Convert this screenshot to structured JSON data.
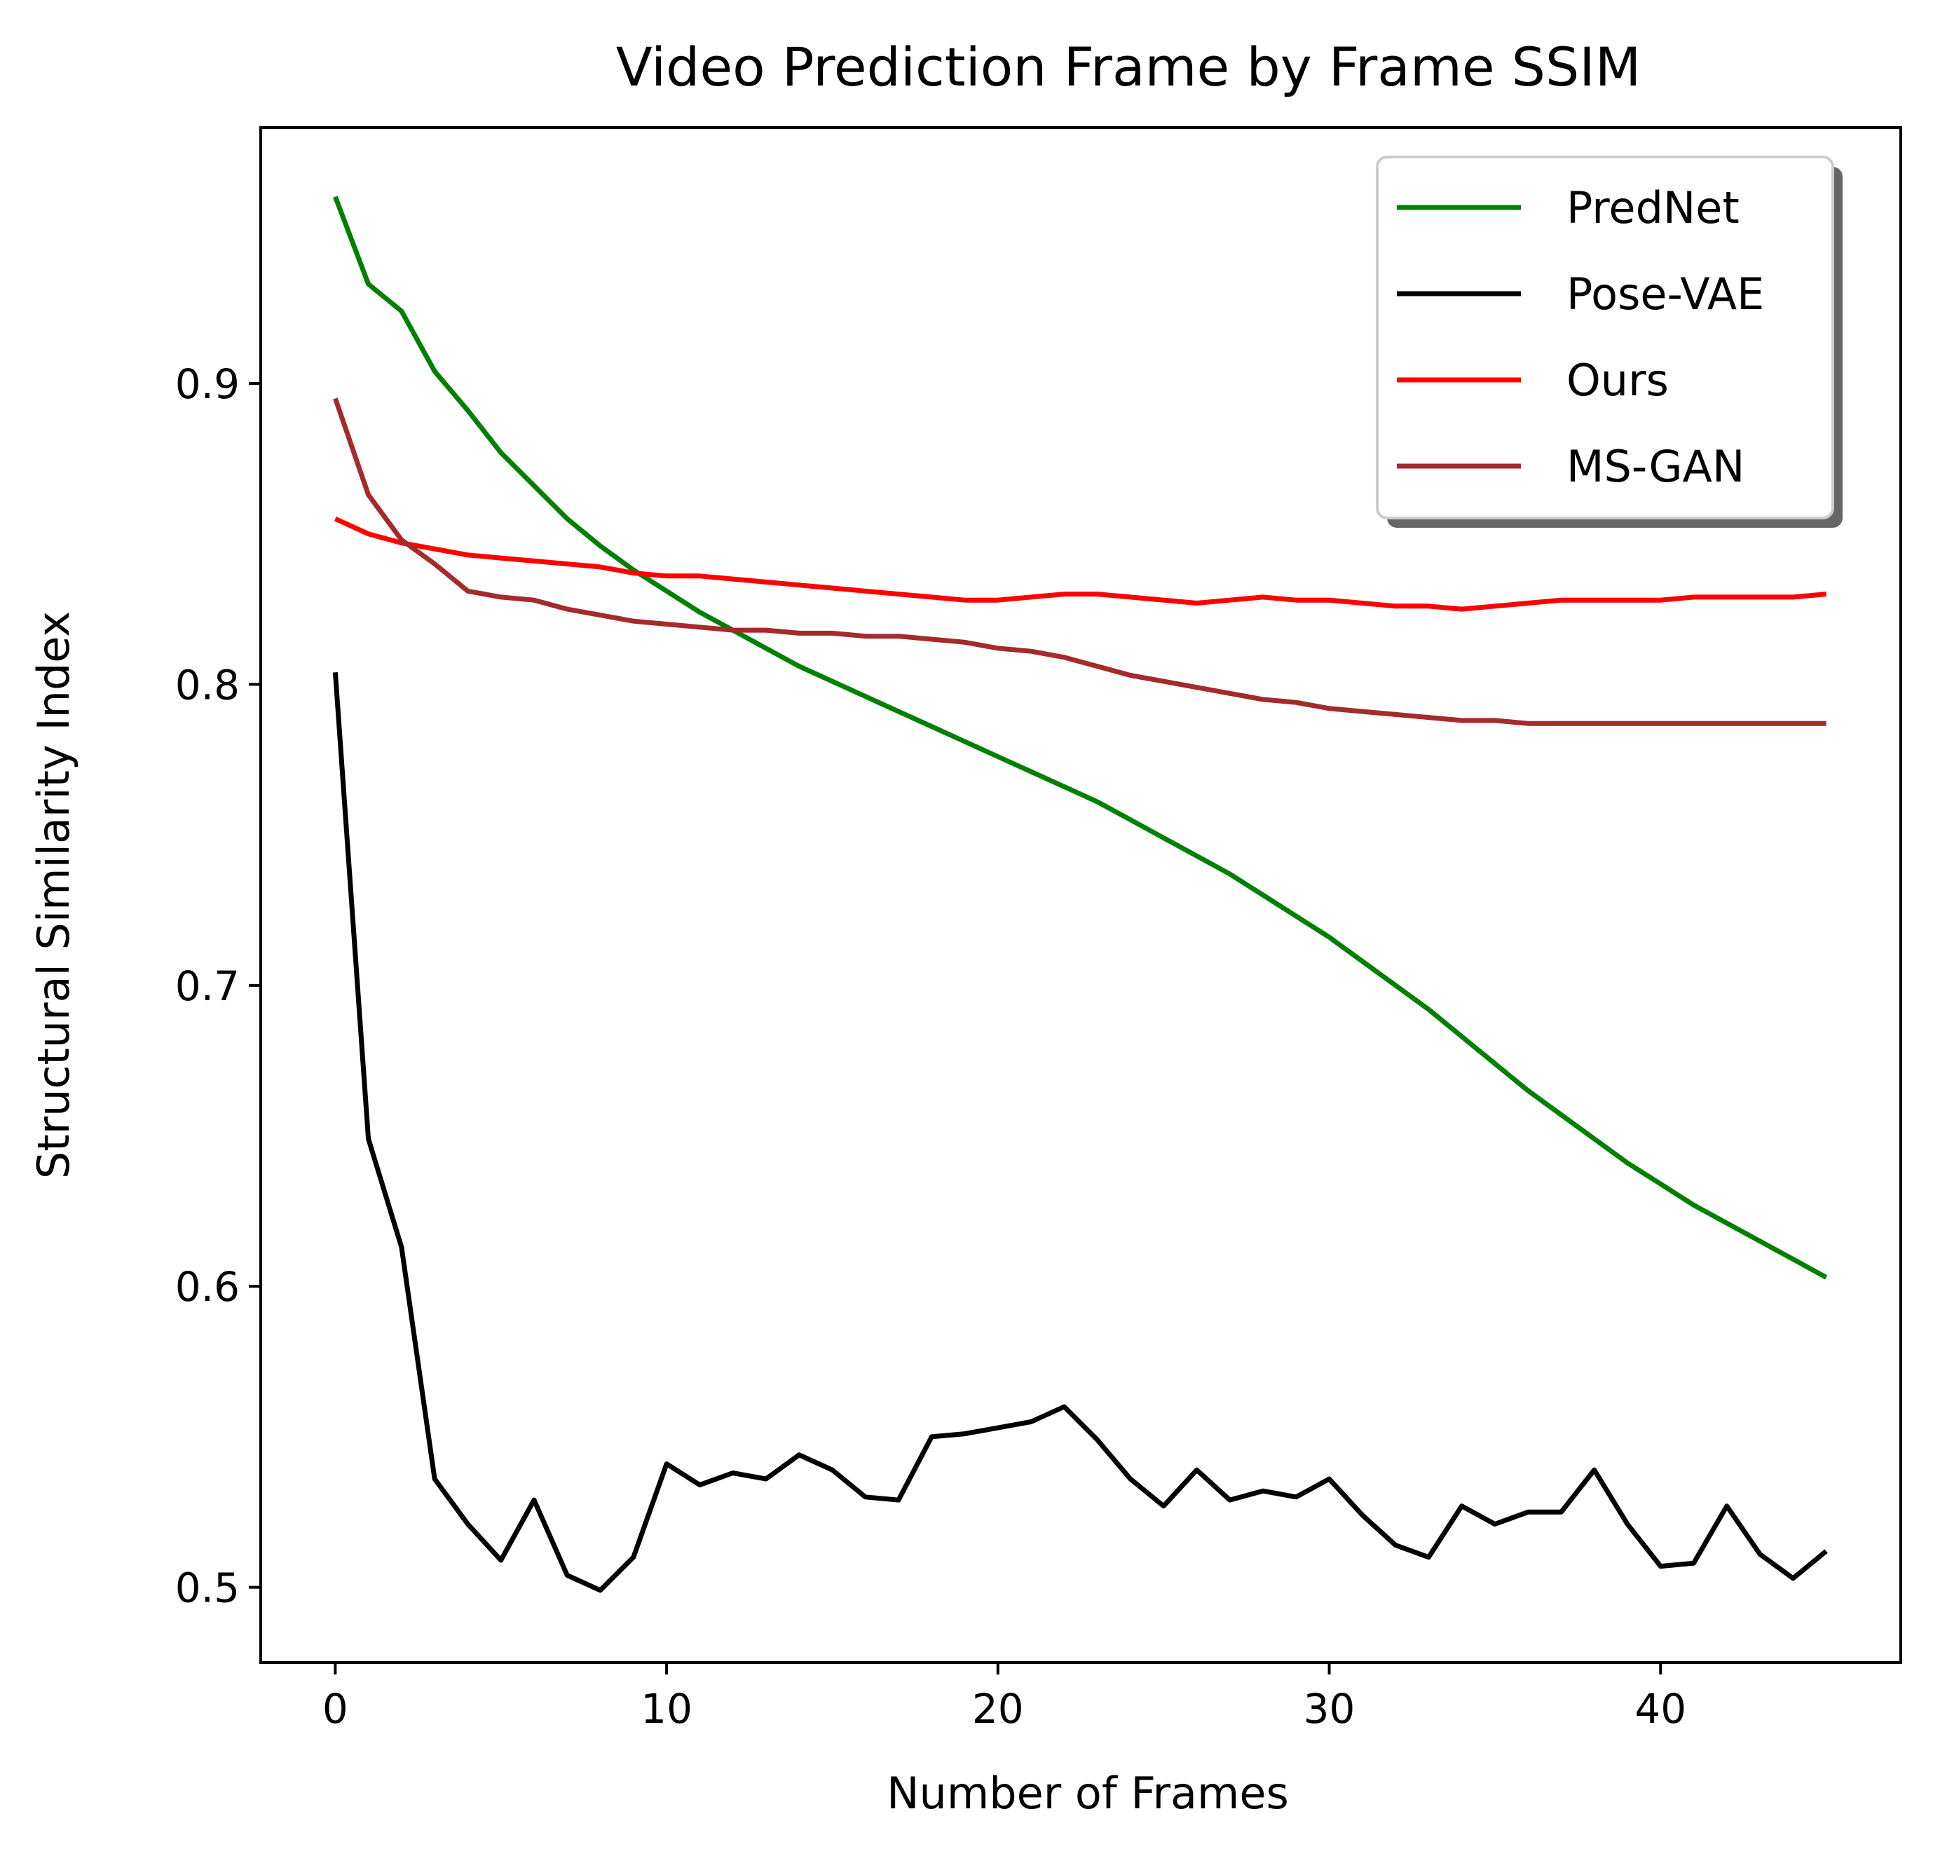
{
  "chart_data": {
    "type": "line",
    "title": "Video Prediction Frame by Frame SSIM",
    "xlabel": "Number of Frames",
    "ylabel": "Structural Similarity Index",
    "xlim": [
      -2.25,
      47.25
    ],
    "ylim": [
      0.475,
      0.985
    ],
    "xticks": [
      0,
      10,
      20,
      30,
      40
    ],
    "yticks": [
      0.5,
      0.6,
      0.7,
      0.8,
      0.9
    ],
    "grid": false,
    "legend": "top-right",
    "x": [
      0,
      1,
      2,
      3,
      4,
      5,
      6,
      7,
      8,
      9,
      10,
      11,
      12,
      13,
      14,
      15,
      16,
      17,
      18,
      19,
      20,
      21,
      22,
      23,
      24,
      25,
      26,
      27,
      28,
      29,
      30,
      31,
      32,
      33,
      34,
      35,
      36,
      37,
      38,
      39,
      40,
      41,
      42,
      43,
      44,
      45
    ],
    "series": [
      {
        "name": "PredNet",
        "color": "#008000",
        "values": [
          0.962,
          0.933,
          0.924,
          0.904,
          0.891,
          0.877,
          0.866,
          0.855,
          0.846,
          0.838,
          0.831,
          0.824,
          0.818,
          0.812,
          0.806,
          0.801,
          0.796,
          0.791,
          0.786,
          0.781,
          0.776,
          0.771,
          0.766,
          0.761,
          0.755,
          0.749,
          0.743,
          0.737,
          0.73,
          0.723,
          0.716,
          0.708,
          0.7,
          0.692,
          0.683,
          0.674,
          0.665,
          0.657,
          0.649,
          0.641,
          0.634,
          0.627,
          0.621,
          0.615,
          0.609,
          0.603
        ]
      },
      {
        "name": "Pose-VAE",
        "color": "#000000",
        "values": [
          0.804,
          0.649,
          0.613,
          0.536,
          0.521,
          0.509,
          0.529,
          0.504,
          0.499,
          0.51,
          0.541,
          0.534,
          0.538,
          0.536,
          0.544,
          0.539,
          0.53,
          0.529,
          0.55,
          0.551,
          0.553,
          0.555,
          0.56,
          0.549,
          0.536,
          0.527,
          0.539,
          0.529,
          0.532,
          0.53,
          0.536,
          0.524,
          0.514,
          0.51,
          0.527,
          0.521,
          0.525,
          0.525,
          0.539,
          0.521,
          0.507,
          0.508,
          0.527,
          0.511,
          0.503,
          0.512
        ]
      },
      {
        "name": "Ours",
        "color": "#ff0000",
        "values": [
          0.855,
          0.85,
          0.847,
          0.845,
          0.843,
          0.842,
          0.841,
          0.84,
          0.839,
          0.837,
          0.836,
          0.836,
          0.835,
          0.834,
          0.833,
          0.832,
          0.831,
          0.83,
          0.829,
          0.828,
          0.828,
          0.829,
          0.83,
          0.83,
          0.829,
          0.828,
          0.827,
          0.828,
          0.829,
          0.828,
          0.828,
          0.827,
          0.826,
          0.826,
          0.825,
          0.826,
          0.827,
          0.828,
          0.828,
          0.828,
          0.828,
          0.829,
          0.829,
          0.829,
          0.829,
          0.83
        ]
      },
      {
        "name": "MS-GAN",
        "color": "#a52a2a",
        "values": [
          0.895,
          0.863,
          0.848,
          0.84,
          0.831,
          0.829,
          0.828,
          0.825,
          0.823,
          0.821,
          0.82,
          0.819,
          0.818,
          0.818,
          0.817,
          0.817,
          0.816,
          0.816,
          0.815,
          0.814,
          0.812,
          0.811,
          0.809,
          0.806,
          0.803,
          0.801,
          0.799,
          0.797,
          0.795,
          0.794,
          0.792,
          0.791,
          0.79,
          0.789,
          0.788,
          0.788,
          0.787,
          0.787,
          0.787,
          0.787,
          0.787,
          0.787,
          0.787,
          0.787,
          0.787,
          0.787
        ]
      }
    ]
  }
}
